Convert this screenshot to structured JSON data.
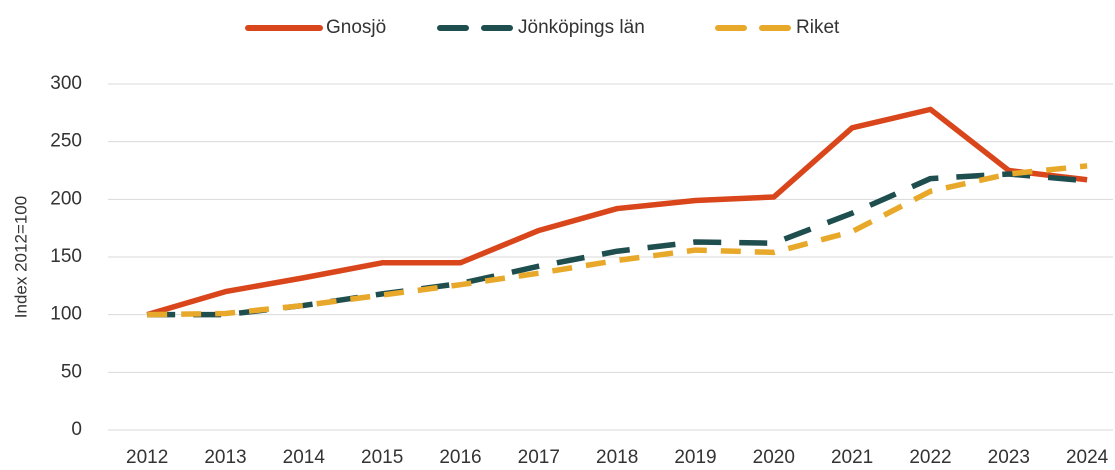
{
  "chart_data": {
    "type": "line",
    "ylabel": "Index 2012=100",
    "categories": [
      "2012",
      "2013",
      "2014",
      "2015",
      "2016",
      "2017",
      "2018",
      "2019",
      "2020",
      "2021",
      "2022",
      "2023",
      "2024"
    ],
    "series": [
      {
        "name": "Gnosjö",
        "color": "#d9461b",
        "dash": "solid",
        "values": [
          100,
          120,
          132,
          145,
          145,
          173,
          192,
          199,
          202,
          262,
          278,
          225,
          217
        ]
      },
      {
        "name": "Jönköpings län",
        "color": "#1f4e4f",
        "dash": "long",
        "values": [
          100,
          100,
          108,
          118,
          127,
          142,
          155,
          163,
          162,
          188,
          218,
          222,
          216
        ]
      },
      {
        "name": "Riket",
        "color": "#e8a92a",
        "dash": "medium",
        "values": [
          100,
          101,
          108,
          117,
          126,
          136,
          147,
          156,
          154,
          172,
          207,
          222,
          229
        ]
      }
    ],
    "ylim": [
      0,
      300
    ],
    "yticks": [
      0,
      50,
      100,
      150,
      200,
      250,
      300
    ],
    "grid": true,
    "legend": "top"
  }
}
